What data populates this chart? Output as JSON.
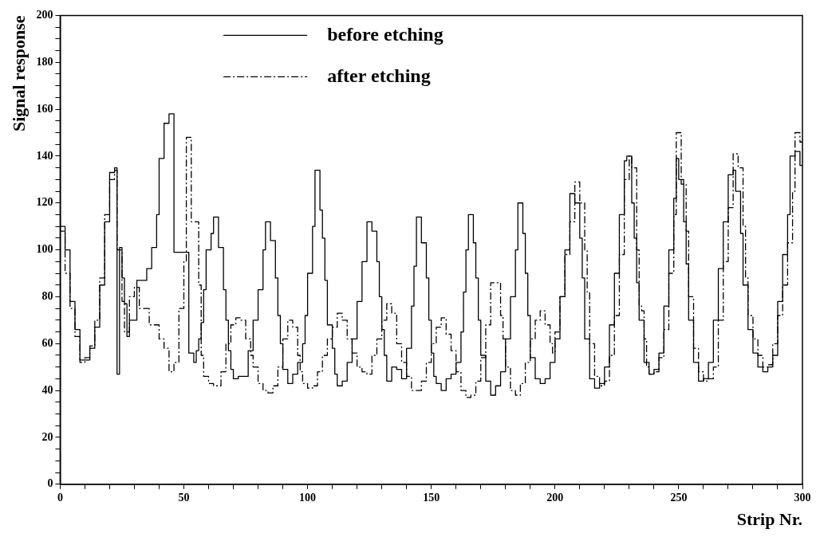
{
  "chart_data": {
    "type": "step",
    "xlabel": "Strip Nr.",
    "ylabel": "Signal response",
    "xlim": [
      0,
      300
    ],
    "ylim": [
      0,
      200
    ],
    "xticks": [
      0,
      {
        "value": 10,
        "label": null
      },
      {
        "value": 20,
        "label": null
      },
      {
        "value": 30,
        "label": null
      },
      {
        "value": 40,
        "label": null
      },
      50,
      {
        "value": 60,
        "label": null
      },
      {
        "value": 70,
        "label": null
      },
      {
        "value": 80,
        "label": null
      },
      {
        "value": 90,
        "label": null
      },
      100,
      {
        "value": 110,
        "label": null
      },
      {
        "value": 120,
        "label": null
      },
      {
        "value": 130,
        "label": null
      },
      {
        "value": 140,
        "label": null
      },
      150,
      {
        "value": 160,
        "label": null
      },
      {
        "value": 170,
        "label": null
      },
      {
        "value": 180,
        "label": null
      },
      {
        "value": 190,
        "label": null
      },
      200,
      {
        "value": 210,
        "label": null
      },
      {
        "value": 220,
        "label": null
      },
      {
        "value": 230,
        "label": null
      },
      {
        "value": 240,
        "label": null
      },
      250,
      {
        "value": 260,
        "label": null
      },
      {
        "value": 270,
        "label": null
      },
      {
        "value": 280,
        "label": null
      },
      {
        "value": 290,
        "label": null
      },
      300
    ],
    "yticks": [
      0,
      {
        "value": 5,
        "label": null
      },
      {
        "value": 10,
        "label": null
      },
      {
        "value": 15,
        "label": null
      },
      20,
      {
        "value": 25,
        "label": null
      },
      {
        "value": 30,
        "label": null
      },
      {
        "value": 35,
        "label": null
      },
      40,
      {
        "value": 45,
        "label": null
      },
      {
        "value": 50,
        "label": null
      },
      {
        "value": 55,
        "label": null
      },
      60,
      {
        "value": 65,
        "label": null
      },
      {
        "value": 70,
        "label": null
      },
      {
        "value": 75,
        "label": null
      },
      80,
      {
        "value": 85,
        "label": null
      },
      {
        "value": 90,
        "label": null
      },
      {
        "value": 95,
        "label": null
      },
      100,
      {
        "value": 105,
        "label": null
      },
      {
        "value": 110,
        "label": null
      },
      {
        "value": 115,
        "label": null
      },
      120,
      {
        "value": 125,
        "label": null
      },
      {
        "value": 130,
        "label": null
      },
      {
        "value": 135,
        "label": null
      },
      140,
      {
        "value": 145,
        "label": null
      },
      {
        "value": 150,
        "label": null
      },
      {
        "value": 155,
        "label": null
      },
      160,
      {
        "value": 165,
        "label": null
      },
      {
        "value": 170,
        "label": null
      },
      {
        "value": 175,
        "label": null
      },
      180,
      {
        "value": 185,
        "label": null
      },
      {
        "value": 190,
        "label": null
      },
      {
        "value": 195,
        "label": null
      },
      200
    ],
    "grid": false,
    "legend": "top",
    "marker": "none",
    "series": [
      {
        "name": "before etching",
        "color": "#000000",
        "line_style": "solid",
        "x": [
          0,
          2,
          4,
          6,
          8,
          10,
          12,
          14,
          16,
          18,
          20,
          22,
          23,
          24,
          25,
          26,
          27,
          28,
          31,
          35,
          37,
          39,
          40,
          42,
          44,
          46,
          52,
          54,
          55,
          56,
          57,
          58,
          59,
          61,
          62,
          64,
          66,
          67,
          68,
          69,
          70,
          72,
          76,
          78,
          80,
          82,
          83,
          85,
          87,
          88,
          89,
          90,
          92,
          94,
          96,
          98,
          99,
          100,
          102,
          103,
          105,
          106,
          107,
          108,
          110,
          111,
          112,
          114,
          116,
          118,
          120,
          122,
          124,
          126,
          128,
          129,
          130,
          131,
          132,
          134,
          136,
          138,
          140,
          142,
          143,
          144,
          146,
          148,
          149,
          150,
          151,
          152,
          154,
          156,
          158,
          160,
          162,
          163,
          164,
          165,
          167,
          168,
          169,
          170,
          172,
          174,
          176,
          178,
          180,
          182,
          184,
          185,
          187,
          188,
          189,
          190,
          192,
          194,
          196,
          198,
          200,
          202,
          204,
          206,
          208,
          210,
          211,
          212,
          214,
          216,
          218,
          220,
          222,
          224,
          226,
          228,
          229,
          231,
          232,
          233,
          234,
          236,
          238,
          240,
          242,
          244,
          246,
          248,
          249,
          250,
          252,
          253,
          254,
          256,
          258,
          260,
          262,
          264,
          266,
          268,
          270,
          272,
          273,
          275,
          276,
          278,
          280,
          282,
          284,
          286,
          288,
          290,
          292,
          294,
          295,
          297,
          299,
          300
        ],
        "values": [
          112,
          110,
          100,
          78,
          66,
          53,
          53,
          58,
          67,
          85,
          112,
          133,
          135,
          47,
          101,
          88,
          77,
          63,
          70,
          87,
          92,
          101,
          115,
          139,
          154,
          158,
          99,
          56,
          52,
          57,
          62,
          69,
          83,
          100,
          107,
          114,
          101,
          83,
          70,
          57,
          49,
          45,
          46,
          57,
          70,
          83,
          100,
          112,
          104,
          88,
          72,
          60,
          49,
          43,
          47,
          52,
          60,
          72,
          90,
          110,
          134,
          117,
          105,
          87,
          68,
          58,
          47,
          42,
          44,
          52,
          62,
          78,
          95,
          112,
          108,
          95,
          80,
          66,
          55,
          44,
          50,
          49,
          45,
          58,
          76,
          93,
          114,
          103,
          88,
          70,
          56,
          46,
          43,
          40,
          45,
          47,
          52,
          65,
          82,
          100,
          115,
          103,
          88,
          70,
          55,
          44,
          38,
          42,
          48,
          62,
          80,
          100,
          120,
          107,
          90,
          72,
          54,
          45,
          43,
          45,
          52,
          62,
          80,
          100,
          124,
          120,
          105,
          88,
          62,
          45,
          41,
          43,
          50,
          68,
          90,
          115,
          138,
          140,
          120,
          105,
          86,
          70,
          52,
          47,
          49,
          56,
          76,
          100,
          122,
          139,
          130,
          112,
          94,
          70,
          52,
          44,
          45,
          52,
          70,
          92,
          112,
          132,
          134,
          125,
          107,
          85,
          66,
          56,
          50,
          48,
          50,
          55,
          78,
          98,
          115,
          140,
          142,
          136
        ]
      },
      {
        "name": "after etching",
        "color": "#000000",
        "line_style": "dashed",
        "x": [
          0,
          2,
          4,
          6,
          8,
          10,
          12,
          14,
          16,
          18,
          20,
          22,
          23,
          25,
          26,
          28,
          30,
          32,
          34,
          36,
          40,
          42,
          44,
          46,
          48,
          50,
          51,
          53,
          56,
          57,
          58,
          60,
          62,
          65,
          67,
          69,
          71,
          73,
          75,
          77,
          78,
          80,
          82,
          84,
          86,
          88,
          90,
          92,
          94,
          96,
          97,
          98,
          100,
          102,
          104,
          106,
          108,
          110,
          112,
          114,
          116,
          118,
          120,
          122,
          124,
          126,
          128,
          130,
          132,
          134,
          136,
          138,
          140,
          142,
          144,
          146,
          148,
          150,
          152,
          154,
          156,
          158,
          160,
          162,
          164,
          166,
          168,
          170,
          172,
          174,
          176,
          178,
          179,
          180,
          182,
          184,
          186,
          188,
          190,
          192,
          194,
          196,
          198,
          199,
          200,
          202,
          204,
          206,
          208,
          210,
          212,
          213,
          214,
          216,
          218,
          220,
          222,
          224,
          226,
          228,
          230,
          231,
          233,
          234,
          235,
          236,
          237,
          238,
          240,
          242,
          244,
          246,
          248,
          249,
          251,
          253,
          254,
          256,
          258,
          260,
          262,
          264,
          266,
          268,
          270,
          272,
          274,
          276,
          277,
          278,
          280,
          282,
          284,
          286,
          288,
          290,
          292,
          294,
          296,
          297,
          299,
          300
        ],
        "values": [
          115,
          108,
          90,
          75,
          63,
          52,
          54,
          59,
          70,
          88,
          115,
          130,
          134,
          100,
          78,
          65,
          80,
          84,
          75,
          75,
          68,
          62,
          58,
          48,
          52,
          75,
          95,
          148,
          112,
          85,
          55,
          46,
          43,
          42,
          48,
          60,
          68,
          71,
          70,
          62,
          55,
          50,
          43,
          40,
          39,
          42,
          50,
          62,
          70,
          67,
          55,
          48,
          43,
          41,
          42,
          48,
          55,
          62,
          67,
          73,
          70,
          62,
          56,
          50,
          48,
          47,
          55,
          62,
          70,
          77,
          73,
          60,
          52,
          46,
          40,
          40,
          44,
          52,
          60,
          67,
          71,
          64,
          57,
          48,
          40,
          37,
          38,
          44,
          54,
          68,
          86,
          86,
          72,
          62,
          50,
          40,
          38,
          43,
          52,
          62,
          70,
          74,
          68,
          60,
          56,
          65,
          80,
          98,
          112,
          129,
          120,
          100,
          82,
          60,
          46,
          42,
          44,
          55,
          72,
          98,
          130,
          140,
          135,
          100,
          76,
          74,
          62,
          50,
          47,
          48,
          54,
          66,
          90,
          115,
          150,
          128,
          108,
          80,
          58,
          48,
          44,
          45,
          50,
          70,
          95,
          118,
          141,
          135,
          110,
          88,
          72,
          62,
          55,
          50,
          51,
          60,
          72,
          85,
          103,
          125,
          150,
          146
        ]
      }
    ]
  }
}
